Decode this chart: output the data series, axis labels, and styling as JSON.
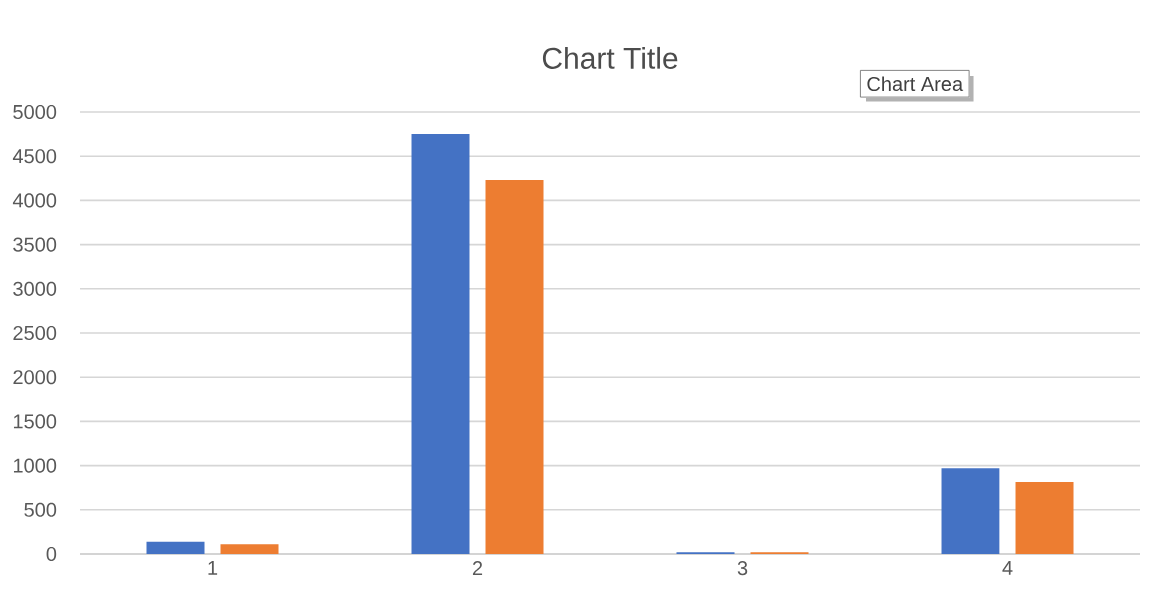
{
  "chart_data": {
    "type": "bar",
    "title": "Chart Title",
    "categories": [
      "1",
      "2",
      "3",
      "4"
    ],
    "series": [
      {
        "color": "#4472c4",
        "values": [
          140,
          4750,
          20,
          970
        ]
      },
      {
        "color": "#ed7d31",
        "values": [
          110,
          4230,
          20,
          815
        ]
      }
    ],
    "ylim": [
      0,
      5000
    ],
    "yticks": [
      0,
      500,
      1000,
      1500,
      2000,
      2500,
      3000,
      3500,
      4000,
      4500,
      5000
    ],
    "grid": "y",
    "annotations": [
      "Chart Area"
    ]
  }
}
